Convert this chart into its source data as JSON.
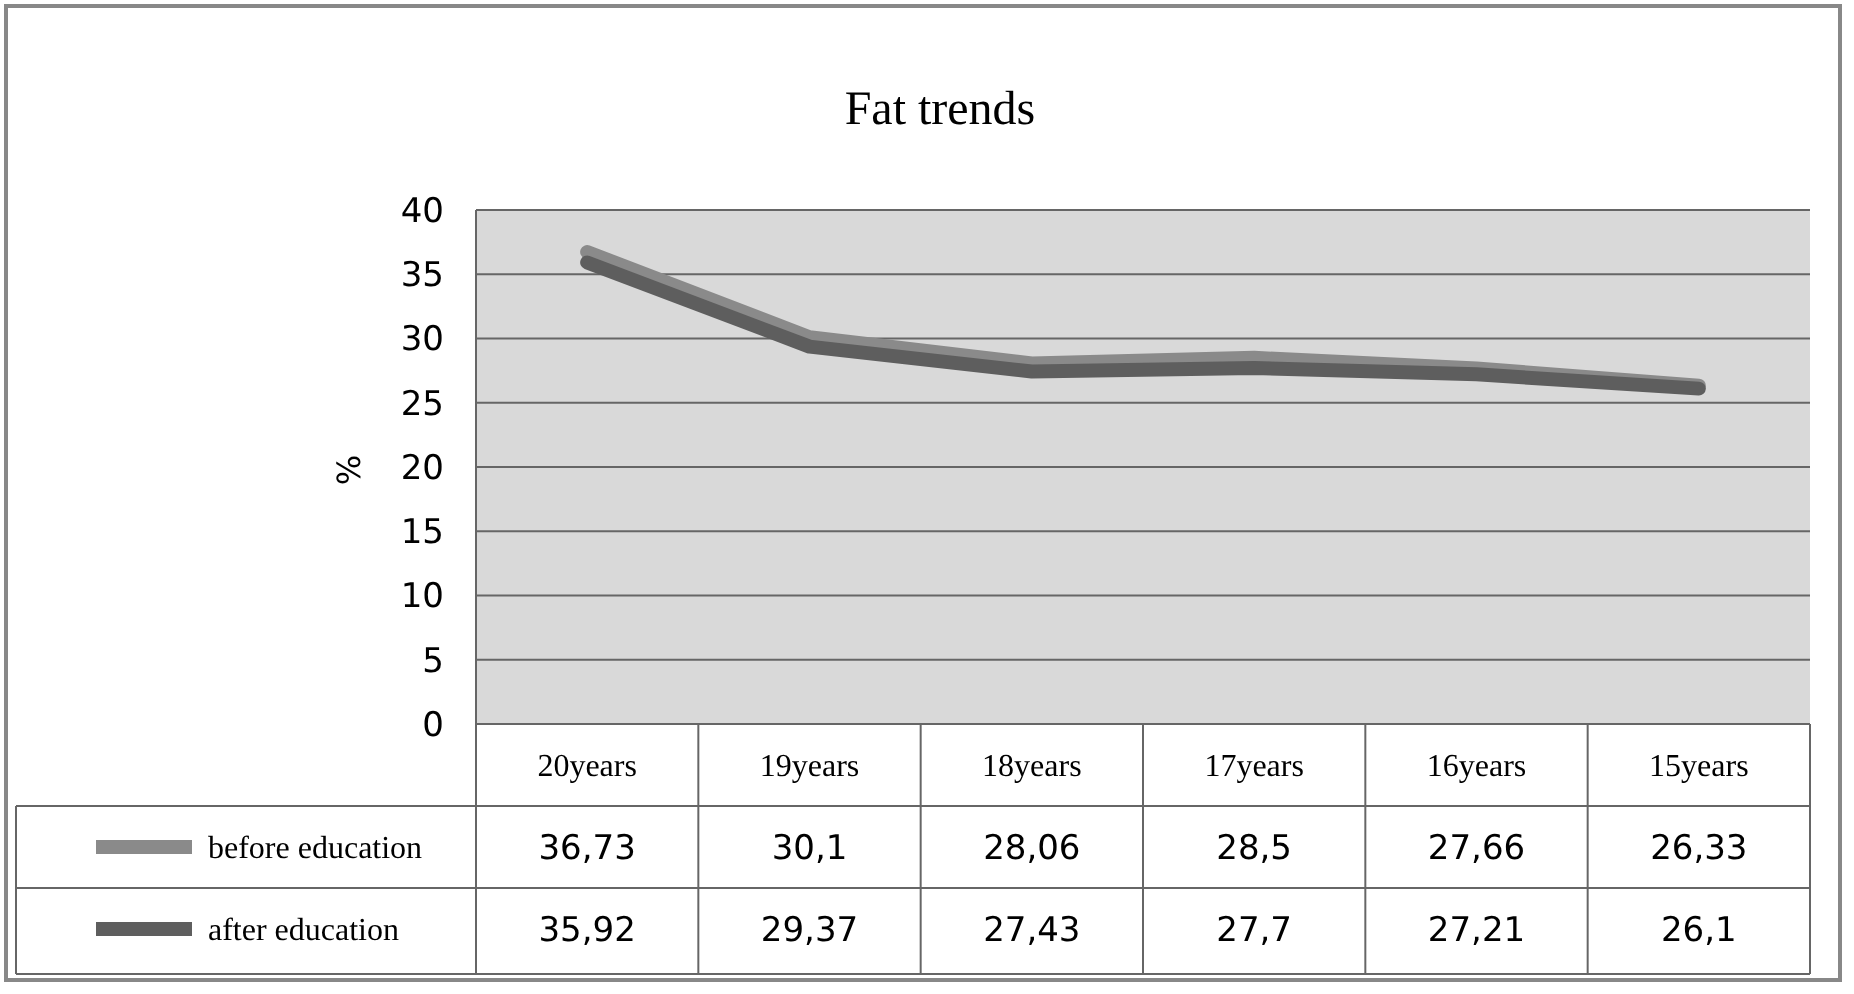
{
  "chart_data": {
    "type": "line",
    "title": "Fat trends",
    "ylabel": "%",
    "categories": [
      "20years",
      "19years",
      "18years",
      "17years",
      "16years",
      "15years"
    ],
    "series": [
      {
        "name": "before education",
        "color": "#8a8a8a",
        "values": [
          36.73,
          30.1,
          28.06,
          28.5,
          27.66,
          26.33
        ],
        "value_labels": [
          "36,73",
          "30,1",
          "28,06",
          "28,5",
          "27,66",
          "26,33"
        ]
      },
      {
        "name": "after education",
        "color": "#5e5e5e",
        "values": [
          35.92,
          29.37,
          27.43,
          27.7,
          27.21,
          26.1
        ],
        "value_labels": [
          "35,92",
          "29,37",
          "27,43",
          "27,7",
          "27,21",
          "26,1"
        ]
      }
    ],
    "ylim": [
      0,
      40
    ],
    "yticks": [
      0,
      5,
      10,
      15,
      20,
      25,
      30,
      35,
      40
    ],
    "grid": "y",
    "legend": "bottom",
    "marker": "none",
    "line_style": "solid"
  }
}
